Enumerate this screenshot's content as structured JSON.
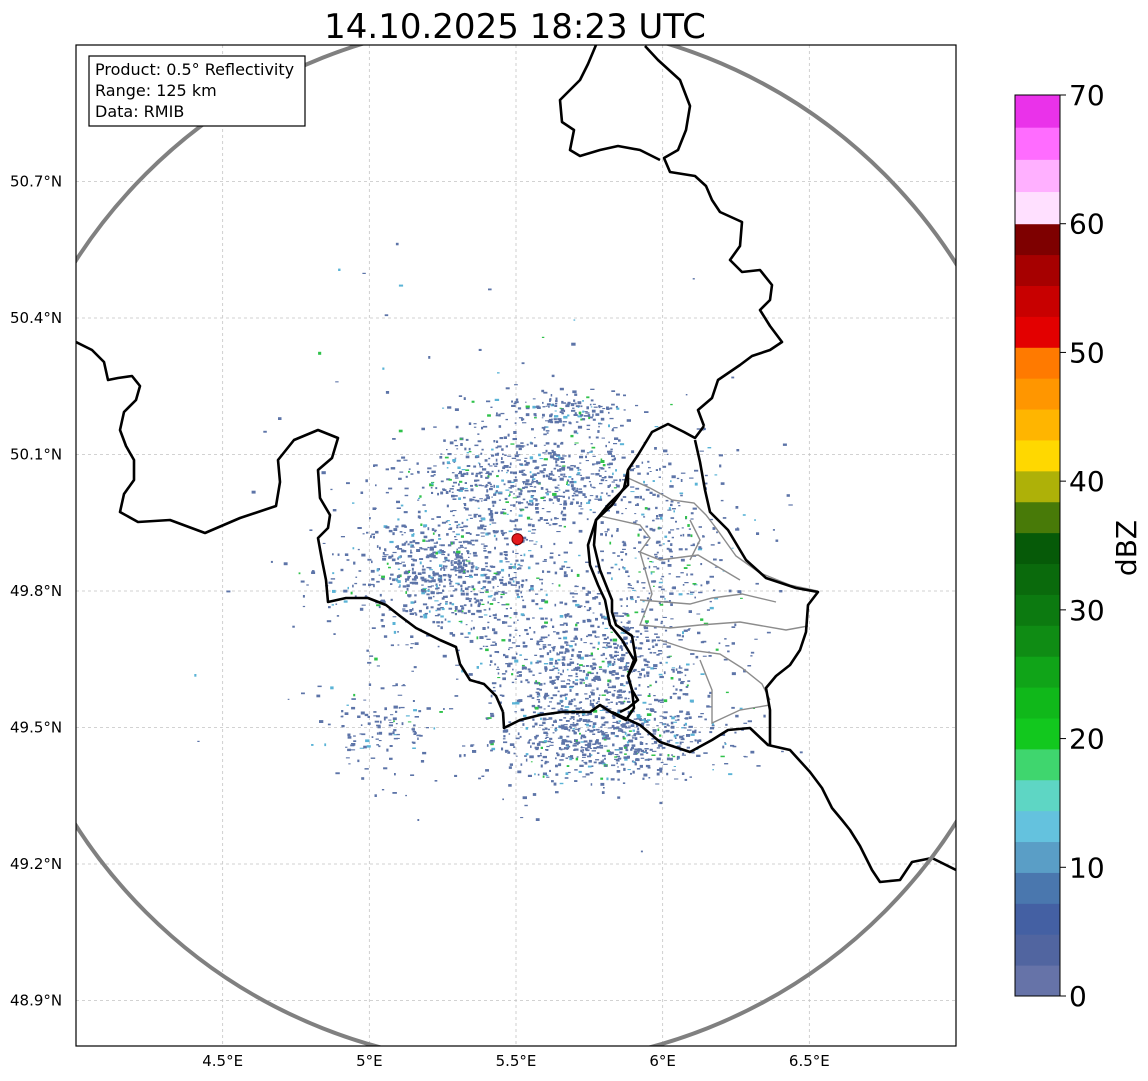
{
  "title": "14.10.2025 18:23 UTC",
  "info_box": {
    "line1": "Product: 0.5° Reflectivity",
    "line2": "Range: 125 km",
    "line3": "Data: RMIB"
  },
  "map": {
    "lon_range": [
      4.0,
      7.0
    ],
    "lat_range": [
      48.8,
      51.0
    ],
    "radar_site": {
      "lon": 5.505,
      "lat": 49.914
    },
    "grid": true,
    "x_ticks": [
      {
        "value": 4.5,
        "label": "4.5°E"
      },
      {
        "value": 5.0,
        "label": "5°E"
      },
      {
        "value": 5.5,
        "label": "5.5°E"
      },
      {
        "value": 6.0,
        "label": "6°E"
      },
      {
        "value": 6.5,
        "label": "6.5°E"
      }
    ],
    "y_ticks": [
      {
        "value": 50.7,
        "label": "50.7°N"
      },
      {
        "value": 50.4,
        "label": "50.4°N"
      },
      {
        "value": 50.1,
        "label": "50.1°N"
      },
      {
        "value": 49.8,
        "label": "49.8°N"
      },
      {
        "value": 49.5,
        "label": "49.5°N"
      },
      {
        "value": 49.2,
        "label": "49.2°N"
      },
      {
        "value": 48.9,
        "label": "48.9°N"
      }
    ],
    "range_ring_km": 125
  },
  "colorbar": {
    "label": "dBZ",
    "min": 0,
    "max": 70,
    "ticks": [
      {
        "value": 0,
        "label": "0"
      },
      {
        "value": 10,
        "label": "10"
      },
      {
        "value": 20,
        "label": "20"
      },
      {
        "value": 30,
        "label": "30"
      },
      {
        "value": 40,
        "label": "40"
      },
      {
        "value": 50,
        "label": "50"
      },
      {
        "value": 60,
        "label": "60"
      },
      {
        "value": 70,
        "label": "70"
      }
    ],
    "colors": [
      "#6673a8",
      "#5165a0",
      "#4460a3",
      "#4a77ae",
      "#5a9ec6",
      "#64c2de",
      "#5ed6c4",
      "#3fd66e",
      "#12c81e",
      "#10b81a",
      "#10a418",
      "#0f8c14",
      "#0c7a10",
      "#0a6a0c",
      "#065a08",
      "#487a08",
      "#aeb108",
      "#ffd800",
      "#ffb500",
      "#ff9600",
      "#ff7a00",
      "#e30000",
      "#c80000",
      "#a60000",
      "#7e0000",
      "#ffe0ff",
      "#ffb0ff",
      "#ff6cff",
      "#ea32ea"
    ]
  },
  "echo_colors": {
    "weak": "#5d74a8",
    "light": "#5ab3d6",
    "moderate": "#2fc24a"
  }
}
